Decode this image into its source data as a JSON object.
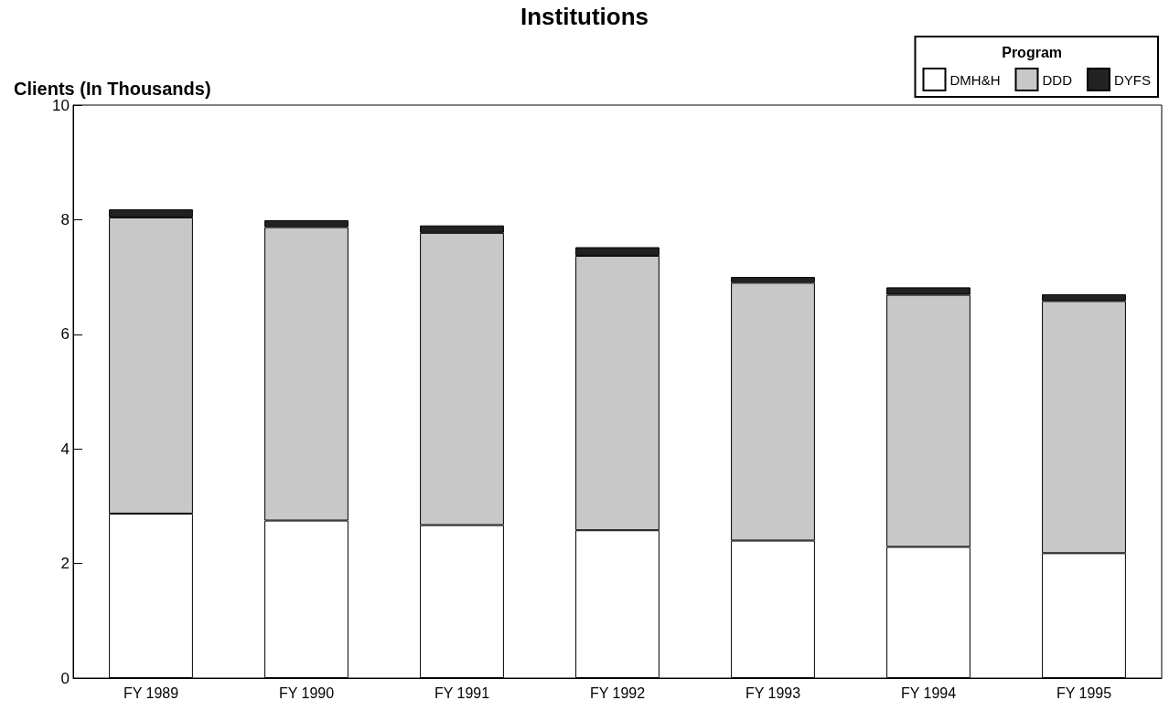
{
  "chart_data": {
    "type": "bar",
    "title": "Institutions",
    "ylabel": "Clients (In Thousands)",
    "legend_title": "Program",
    "categories": [
      "FY 1989",
      "FY 1990",
      "FY 1991",
      "FY 1992",
      "FY 1993",
      "FY 1994",
      "FY 1995"
    ],
    "stacked": true,
    "series": [
      {
        "name": "DMH&H",
        "color": "#ffffff",
        "values": [
          2.87,
          2.75,
          2.67,
          2.58,
          2.4,
          2.29,
          2.18
        ]
      },
      {
        "name": "DDD",
        "color": "#c8c8c8",
        "values": [
          5.17,
          5.12,
          5.1,
          4.79,
          4.5,
          4.4,
          4.4
        ]
      },
      {
        "name": "DYFS",
        "color": "#222222",
        "values": [
          0.14,
          0.12,
          0.13,
          0.15,
          0.1,
          0.13,
          0.12
        ]
      }
    ],
    "ylim": [
      0,
      10
    ],
    "yticks": [
      0,
      2,
      4,
      6,
      8,
      10
    ],
    "grid": false,
    "legend": "top right"
  }
}
